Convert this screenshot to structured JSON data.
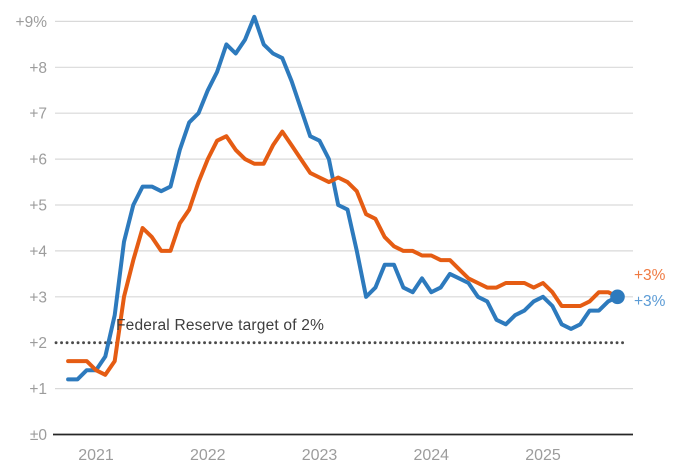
{
  "colors": {
    "background": "#ffffff",
    "grid": "#d9d9d9",
    "axis": "#262626",
    "tick_label": "#9c9c9c",
    "annotation_text": "#3e3e3e",
    "target_line": "#4a4a4a"
  },
  "chart_data": {
    "type": "line",
    "title": "",
    "x_start": "2020-10",
    "x_frequency": "monthly",
    "x_ticks": [
      {
        "label": "2021",
        "month_index": 3
      },
      {
        "label": "2022",
        "month_index": 15
      },
      {
        "label": "2023",
        "month_index": 27
      },
      {
        "label": "2024",
        "month_index": 39
      },
      {
        "label": "2025",
        "month_index": 51
      }
    ],
    "y_ticks": [
      {
        "label": "±0",
        "value": 0
      },
      {
        "label": "+1",
        "value": 1
      },
      {
        "label": "+2",
        "value": 2
      },
      {
        "label": "+3",
        "value": 3
      },
      {
        "label": "+4",
        "value": 4
      },
      {
        "label": "+5",
        "value": 5
      },
      {
        "label": "+6",
        "value": 6
      },
      {
        "label": "+7",
        "value": 7
      },
      {
        "label": "+8",
        "value": 8
      },
      {
        "label": "+9%",
        "value": 9
      }
    ],
    "ylim": [
      0,
      9.5
    ],
    "annotation": "Federal Reserve target of 2%",
    "target_value": 2,
    "series": [
      {
        "id": "blue",
        "color": "#2d7abd",
        "label_color": "#5b9bd5",
        "end_label": "+3%",
        "end_marker": true,
        "values": [
          1.2,
          1.2,
          1.4,
          1.4,
          1.7,
          2.6,
          4.2,
          5.0,
          5.4,
          5.4,
          5.3,
          5.4,
          6.2,
          6.8,
          7.0,
          7.5,
          7.9,
          8.5,
          8.3,
          8.6,
          9.1,
          8.5,
          8.3,
          8.2,
          7.7,
          7.1,
          6.5,
          6.4,
          6.0,
          5.0,
          4.9,
          4.0,
          3.0,
          3.2,
          3.7,
          3.7,
          3.2,
          3.1,
          3.4,
          3.1,
          3.2,
          3.5,
          3.4,
          3.3,
          3.0,
          2.9,
          2.5,
          2.4,
          2.6,
          2.7,
          2.9,
          3.0,
          2.8,
          2.4,
          2.3,
          2.4,
          2.7,
          2.7,
          2.9,
          3.0
        ]
      },
      {
        "id": "orange",
        "color": "#e55c13",
        "label_color": "#ef7a42",
        "end_label": "+3%",
        "end_marker": false,
        "values": [
          1.6,
          1.6,
          1.6,
          1.4,
          1.3,
          1.6,
          3.0,
          3.8,
          4.5,
          4.3,
          4.0,
          4.0,
          4.6,
          4.9,
          5.5,
          6.0,
          6.4,
          6.5,
          6.2,
          6.0,
          5.9,
          5.9,
          6.3,
          6.6,
          6.3,
          6.0,
          5.7,
          5.6,
          5.5,
          5.6,
          5.5,
          5.3,
          4.8,
          4.7,
          4.3,
          4.1,
          4.0,
          4.0,
          3.9,
          3.9,
          3.8,
          3.8,
          3.6,
          3.4,
          3.3,
          3.2,
          3.2,
          3.3,
          3.3,
          3.3,
          3.2,
          3.3,
          3.1,
          2.8,
          2.8,
          2.8,
          2.9,
          3.1,
          3.1,
          3.0
        ]
      }
    ]
  }
}
